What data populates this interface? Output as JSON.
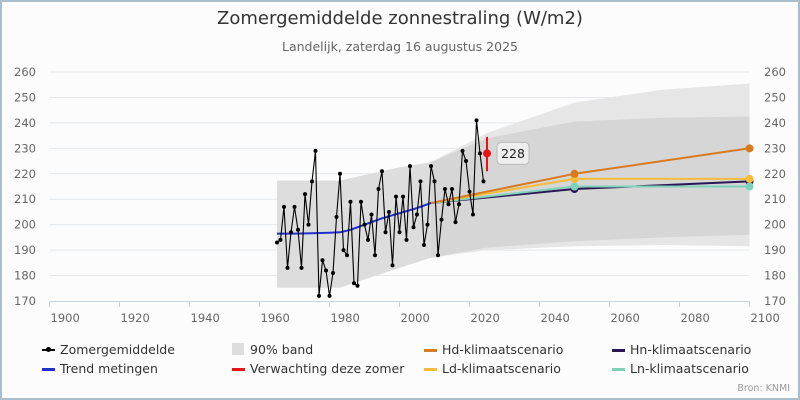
{
  "header": {
    "title": "Zomergemiddelde zonnestraling (W/m2)",
    "subtitle": "Landelijk, zaterdag 16 augustus 2025"
  },
  "source": "Bron: KNMI",
  "colors": {
    "observed": "#000000",
    "trend": "#1f2fd0",
    "forecast": "#ee1111",
    "hd": "#d87a20",
    "ld": "#f5bc3a",
    "hn": "#2a1650",
    "ln": "#7fd1b9",
    "band_observed": "#dddddd",
    "band_outer": "#e6e6e6",
    "band_inner": "#d6d6d6",
    "grid": "#e4e8ec",
    "axis": "#c8d3dc"
  },
  "legend": [
    {
      "key": "observed",
      "label": "Zomergemiddelde",
      "symbol": "line-dot"
    },
    {
      "key": "band",
      "label": "90% band",
      "symbol": "square"
    },
    {
      "key": "hd",
      "label": "Hd-klimaatscenario",
      "symbol": "line"
    },
    {
      "key": "hn",
      "label": "Hn-klimaatscenario",
      "symbol": "line"
    },
    {
      "key": "trend",
      "label": "Trend metingen",
      "symbol": "line"
    },
    {
      "key": "forecast",
      "label": "Verwachting deze zomer",
      "symbol": "line"
    },
    {
      "key": "ld",
      "label": "Ld-klimaatscenario",
      "symbol": "line"
    },
    {
      "key": "ln",
      "label": "Ln-klimaatscenario",
      "symbol": "line"
    }
  ],
  "chart_data": {
    "type": "line",
    "title": "Zomergemiddelde zonnestraling (W/m2)",
    "subtitle": "Landelijk, zaterdag 16 augustus 2025",
    "xlabel": "",
    "ylabel": "",
    "xlim": [
      1900,
      2100
    ],
    "ylim": [
      170,
      260
    ],
    "x_ticks": [
      "1900",
      "1920",
      "1940",
      "1960",
      "1980",
      "2000",
      "2020",
      "2040",
      "2060",
      "2080",
      "2100"
    ],
    "y_ticks": [
      "170",
      "180",
      "190",
      "200",
      "210",
      "220",
      "230",
      "240",
      "250",
      "260"
    ],
    "grid": true,
    "legend_position": "bottom",
    "series": [
      {
        "name": "Zomergemiddelde",
        "key": "observed",
        "x": [
          1965,
          1966,
          1967,
          1968,
          1969,
          1970,
          1971,
          1972,
          1973,
          1974,
          1975,
          1976,
          1977,
          1978,
          1979,
          1980,
          1981,
          1982,
          1983,
          1984,
          1985,
          1986,
          1987,
          1988,
          1989,
          1990,
          1991,
          1992,
          1993,
          1994,
          1995,
          1996,
          1997,
          1998,
          1999,
          2000,
          2001,
          2002,
          2003,
          2004,
          2005,
          2006,
          2007,
          2008,
          2009,
          2010,
          2011,
          2012,
          2013,
          2014,
          2015,
          2016,
          2017,
          2018,
          2019,
          2020,
          2021,
          2022,
          2023,
          2024
        ],
        "y": [
          193,
          194,
          207,
          183,
          197,
          207,
          198,
          183,
          212,
          200,
          217,
          229,
          172,
          186,
          182,
          172,
          181,
          203,
          220,
          190,
          188,
          209,
          177,
          176,
          209,
          200,
          194,
          204,
          188,
          214,
          221,
          197,
          205,
          184,
          211,
          197,
          211,
          194,
          223,
          199,
          204,
          217,
          192,
          200,
          223,
          217,
          188,
          202,
          214,
          208,
          214,
          201,
          208,
          229,
          225,
          213,
          204,
          241,
          228,
          217
        ]
      },
      {
        "name": "Trend metingen",
        "key": "trend",
        "x": [
          1965,
          1970,
          1975,
          1980,
          1983,
          1986,
          1990,
          1995,
          2000,
          2005,
          2009
        ],
        "y": [
          196.5,
          196.5,
          196.6,
          196.8,
          197,
          198,
          200,
          202.5,
          204.5,
          206.5,
          208.5
        ]
      },
      {
        "name": "Verwachting deze zomer",
        "key": "forecast",
        "x": [
          2025
        ],
        "y": [
          228
        ],
        "low": [
          221
        ],
        "high": [
          234.5
        ],
        "label": "228"
      },
      {
        "name": "Hd-klimaatscenario",
        "key": "hd",
        "x": [
          2009,
          2050,
          2100
        ],
        "y": [
          208.5,
          220,
          230
        ]
      },
      {
        "name": "Ld-klimaatscenario",
        "key": "ld",
        "x": [
          2009,
          2050,
          2100
        ],
        "y": [
          208.5,
          218,
          218
        ]
      },
      {
        "name": "Hn-klimaatscenario",
        "key": "hn",
        "x": [
          2009,
          2050,
          2100
        ],
        "y": [
          208.5,
          214,
          217
        ]
      },
      {
        "name": "Ln-klimaatscenario",
        "key": "ln",
        "x": [
          2009,
          2050,
          2100
        ],
        "y": [
          208.5,
          215,
          215
        ]
      }
    ],
    "bands": [
      {
        "name": "90% band",
        "key": "band_observed",
        "x": [
          1965,
          1983,
          1990,
          2000,
          2009
        ],
        "upper": [
          217.3,
          217.3,
          219.5,
          222.5,
          224.6
        ],
        "lower": [
          175.2,
          175.2,
          178.5,
          183,
          187
        ]
      },
      {
        "name": "90% band scenario (buiten)",
        "key": "band_outer",
        "x": [
          2009,
          2025,
          2050,
          2075,
          2100
        ],
        "upper": [
          224.6,
          236,
          248,
          253,
          255.5
        ],
        "lower": [
          187,
          190,
          191.5,
          192,
          191.5
        ]
      },
      {
        "name": "90% band scenario (binnen)",
        "key": "band_inner",
        "x": [
          2009,
          2025,
          2050,
          2075,
          2100
        ],
        "upper": [
          224.6,
          234,
          240.5,
          242,
          242.5
        ],
        "lower": [
          187,
          191,
          193.5,
          195,
          196
        ]
      }
    ]
  }
}
